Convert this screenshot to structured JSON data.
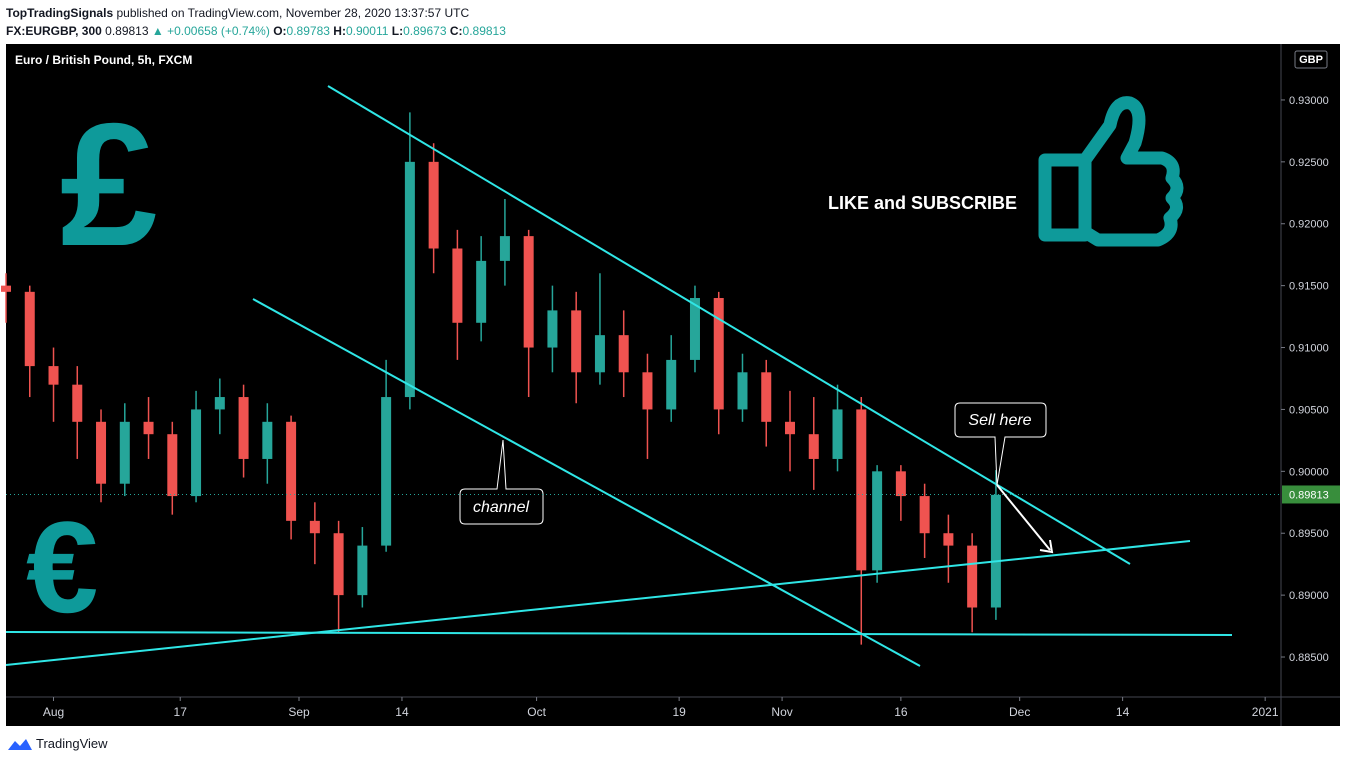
{
  "header": {
    "author": "TopTradingSignals",
    "published": "published on TradingView.com, November 28, 2020 13:37:57 UTC",
    "symbol": "FX:EURGBP, 300",
    "price": "0.89813",
    "change": "▲ +0.00658 (+0.74%)",
    "open_label": "O:",
    "open": "0.89783",
    "high_label": "H:",
    "high": "0.90011",
    "low_label": "L:",
    "low": "0.89673",
    "close_label": "C:",
    "close": "0.89813"
  },
  "chart_data": {
    "type": "candlestick",
    "title": "Euro / British Pound, 5h, FXCM",
    "currency": "GBP",
    "x": [
      "2020-07-26",
      "2020-07-29",
      "2020-08-01",
      "2020-08-04",
      "2020-08-07",
      "2020-08-10",
      "2020-08-13",
      "2020-08-16",
      "2020-08-19",
      "2020-08-22",
      "2020-08-25",
      "2020-08-28",
      "2020-08-31",
      "2020-09-03",
      "2020-09-06",
      "2020-09-09",
      "2020-09-12",
      "2020-09-15",
      "2020-09-18",
      "2020-09-21",
      "2020-09-24",
      "2020-09-27",
      "2020-09-30",
      "2020-10-03",
      "2020-10-06",
      "2020-10-09",
      "2020-10-12",
      "2020-10-15",
      "2020-10-18",
      "2020-10-21",
      "2020-10-24",
      "2020-10-27",
      "2020-10-30",
      "2020-11-02",
      "2020-11-05",
      "2020-11-08",
      "2020-11-11",
      "2020-11-13",
      "2020-11-16",
      "2020-11-19",
      "2020-11-22",
      "2020-11-25",
      "2020-11-28"
    ],
    "open": [
      0.915,
      0.9145,
      0.9085,
      0.907,
      0.904,
      0.899,
      0.904,
      0.903,
      0.898,
      0.905,
      0.906,
      0.901,
      0.904,
      0.896,
      0.895,
      0.89,
      0.894,
      0.906,
      0.925,
      0.918,
      0.912,
      0.917,
      0.919,
      0.91,
      0.913,
      0.908,
      0.911,
      0.908,
      0.905,
      0.909,
      0.914,
      0.905,
      0.908,
      0.904,
      0.903,
      0.901,
      0.905,
      0.892,
      0.9,
      0.898,
      0.895,
      0.894,
      0.889
    ],
    "high": [
      0.916,
      0.915,
      0.91,
      0.9085,
      0.905,
      0.9055,
      0.906,
      0.904,
      0.9065,
      0.9075,
      0.907,
      0.9055,
      0.9045,
      0.8975,
      0.896,
      0.8955,
      0.909,
      0.929,
      0.9265,
      0.9195,
      0.919,
      0.922,
      0.9195,
      0.915,
      0.9145,
      0.916,
      0.913,
      0.9095,
      0.911,
      0.915,
      0.9145,
      0.9095,
      0.909,
      0.9065,
      0.906,
      0.907,
      0.906,
      0.9005,
      0.9005,
      0.899,
      0.8965,
      0.895,
      0.9001
    ],
    "low": [
      0.912,
      0.906,
      0.904,
      0.901,
      0.8975,
      0.898,
      0.901,
      0.8965,
      0.8975,
      0.903,
      0.8995,
      0.899,
      0.8945,
      0.8925,
      0.887,
      0.889,
      0.8935,
      0.905,
      0.916,
      0.909,
      0.9105,
      0.915,
      0.906,
      0.908,
      0.9055,
      0.907,
      0.906,
      0.901,
      0.904,
      0.908,
      0.903,
      0.904,
      0.902,
      0.9,
      0.8985,
      0.9,
      0.886,
      0.891,
      0.896,
      0.893,
      0.891,
      0.887,
      0.888
    ],
    "close": [
      0.9145,
      0.9085,
      0.907,
      0.904,
      0.899,
      0.904,
      0.903,
      0.898,
      0.905,
      0.906,
      0.901,
      0.904,
      0.896,
      0.895,
      0.89,
      0.894,
      0.906,
      0.925,
      0.918,
      0.912,
      0.917,
      0.919,
      0.91,
      0.913,
      0.908,
      0.911,
      0.908,
      0.905,
      0.909,
      0.914,
      0.905,
      0.908,
      0.904,
      0.903,
      0.901,
      0.905,
      0.892,
      0.9,
      0.898,
      0.895,
      0.894,
      0.889,
      0.8981
    ],
    "up_color": "#26a69a",
    "down_color": "#ef5350",
    "xlim": [
      "2020-07-26",
      "2021-01-03"
    ],
    "xticks": [
      {
        "value": "2020-08-01",
        "label": "Aug"
      },
      {
        "value": "2020-08-17",
        "label": "17"
      },
      {
        "value": "2020-09-01",
        "label": "Sep"
      },
      {
        "value": "2020-09-14",
        "label": "14"
      },
      {
        "value": "2020-10-01",
        "label": "Oct"
      },
      {
        "value": "2020-10-19",
        "label": "19"
      },
      {
        "value": "2020-11-01",
        "label": "Nov"
      },
      {
        "value": "2020-11-16",
        "label": "16"
      },
      {
        "value": "2020-12-01",
        "label": "Dec"
      },
      {
        "value": "2020-12-14",
        "label": "14"
      },
      {
        "value": "2021-01-01",
        "label": "2021"
      }
    ],
    "ylim": [
      0.88177,
      0.93452
    ],
    "yticks": [
      {
        "value": 0.885,
        "label": "0.88500"
      },
      {
        "value": 0.89,
        "label": "0.89000"
      },
      {
        "value": 0.895,
        "label": "0.89500"
      },
      {
        "value": 0.9,
        "label": "0.90000"
      },
      {
        "value": 0.905,
        "label": "0.90500"
      },
      {
        "value": 0.91,
        "label": "0.91000"
      },
      {
        "value": 0.915,
        "label": "0.91500"
      },
      {
        "value": 0.92,
        "label": "0.92000"
      },
      {
        "value": 0.925,
        "label": "0.92500"
      },
      {
        "value": 0.93,
        "label": "0.93000"
      }
    ],
    "last_price": {
      "value": 0.89813,
      "label": "0.89813"
    },
    "annotations": {
      "pound": "£",
      "euro": "€",
      "cta": "LIKE and SUBSCRIBE",
      "channel": "channel",
      "sell": "Sell here"
    }
  },
  "footer": {
    "brand": "TradingView"
  }
}
